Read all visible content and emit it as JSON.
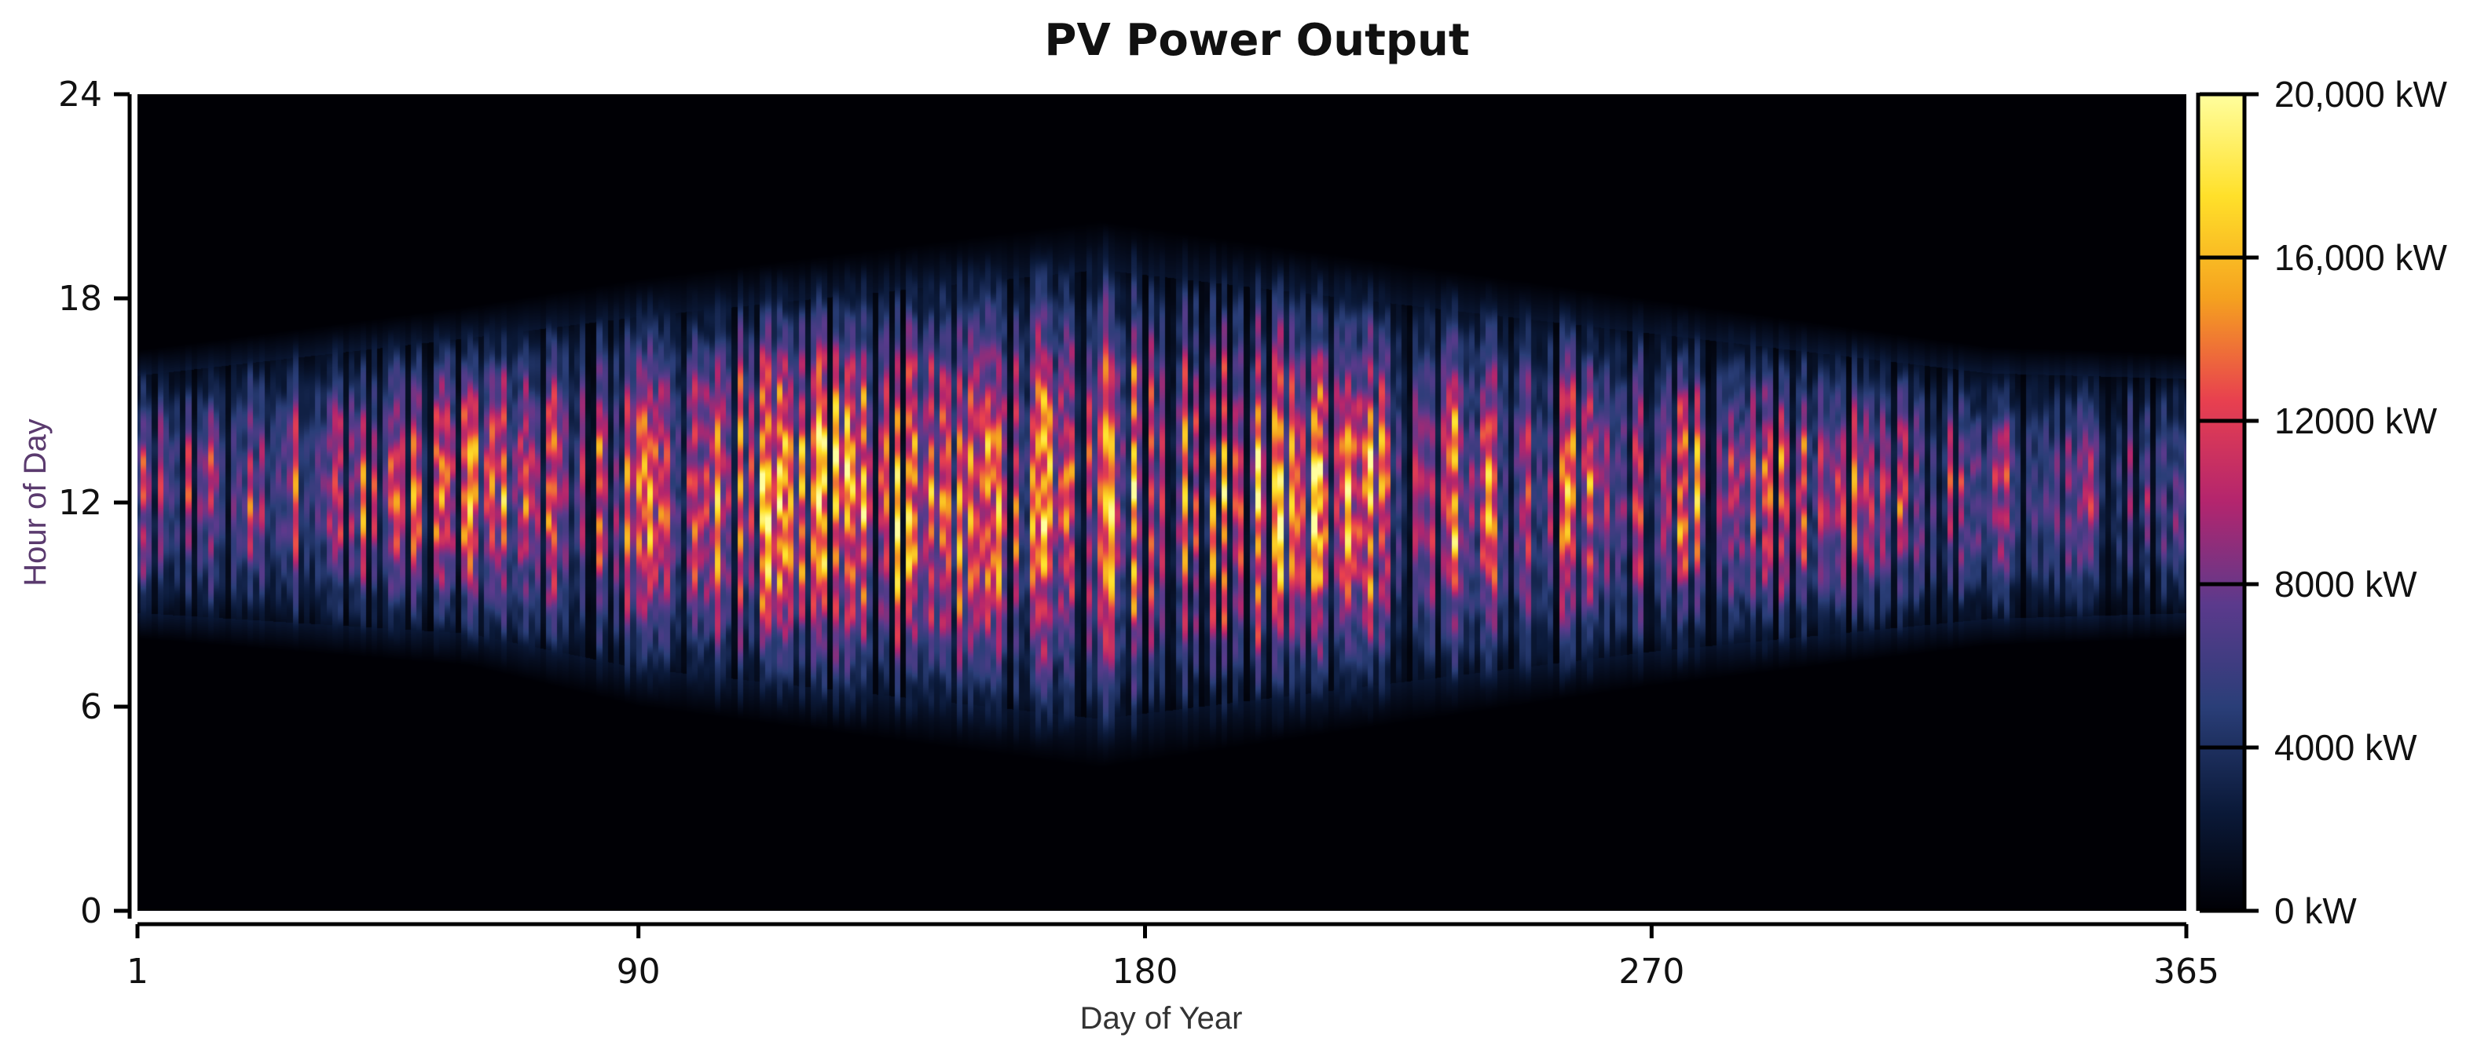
{
  "chart_data": {
    "type": "heatmap",
    "title": "PV Power Output",
    "xlabel": "Day of Year",
    "ylabel": "Hour of Day",
    "xlim": [
      1,
      365
    ],
    "ylim": [
      0,
      24
    ],
    "x_ticks": [
      {
        "value": 1,
        "label": "1"
      },
      {
        "value": 90,
        "label": "90"
      },
      {
        "value": 180,
        "label": "180"
      },
      {
        "value": 270,
        "label": "270"
      },
      {
        "value": 365,
        "label": "365"
      }
    ],
    "y_ticks": [
      {
        "value": 0,
        "label": "0"
      },
      {
        "value": 6,
        "label": "6"
      },
      {
        "value": 12,
        "label": "12"
      },
      {
        "value": 18,
        "label": "18"
      },
      {
        "value": 24,
        "label": "24"
      }
    ],
    "colorbar": {
      "range": [
        0,
        20000
      ],
      "unit": "kW",
      "colormap": "inferno-like",
      "colors": [
        "#000005",
        "#0b1a3a",
        "#2a3e78",
        "#5b3a8c",
        "#b3256e",
        "#e8404f",
        "#f5a11f",
        "#ffe02a",
        "#fffe9e"
      ],
      "ticks": [
        {
          "value": 0,
          "label": "0 kW"
        },
        {
          "value": 4000,
          "label": "4000 kW"
        },
        {
          "value": 8000,
          "label": "8000 kW"
        },
        {
          "value": 12000,
          "label": "12000 kW"
        },
        {
          "value": 16000,
          "label": "16,000 kW"
        },
        {
          "value": 20000,
          "label": "20,000 kW"
        }
      ]
    },
    "daylight_window": {
      "description_points": [
        {
          "day": 1,
          "sunrise_hour": 8.0,
          "sunset_hour": 16.5
        },
        {
          "day": 60,
          "sunrise_hour": 7.2,
          "sunset_hour": 17.8
        },
        {
          "day": 90,
          "sunrise_hour": 6.0,
          "sunset_hour": 18.6
        },
        {
          "day": 172,
          "sunrise_hour": 4.2,
          "sunset_hour": 20.3
        },
        {
          "day": 270,
          "sunrise_hour": 6.6,
          "sunset_hour": 18.0
        },
        {
          "day": 330,
          "sunrise_hour": 7.8,
          "sunset_hour": 16.6
        },
        {
          "day": 365,
          "sunrise_hour": 8.0,
          "sunset_hour": 16.4
        }
      ],
      "peak_hour": 12.5,
      "typical_max_kw": 18000
    },
    "grid": false,
    "legend": "colorbar-right"
  }
}
